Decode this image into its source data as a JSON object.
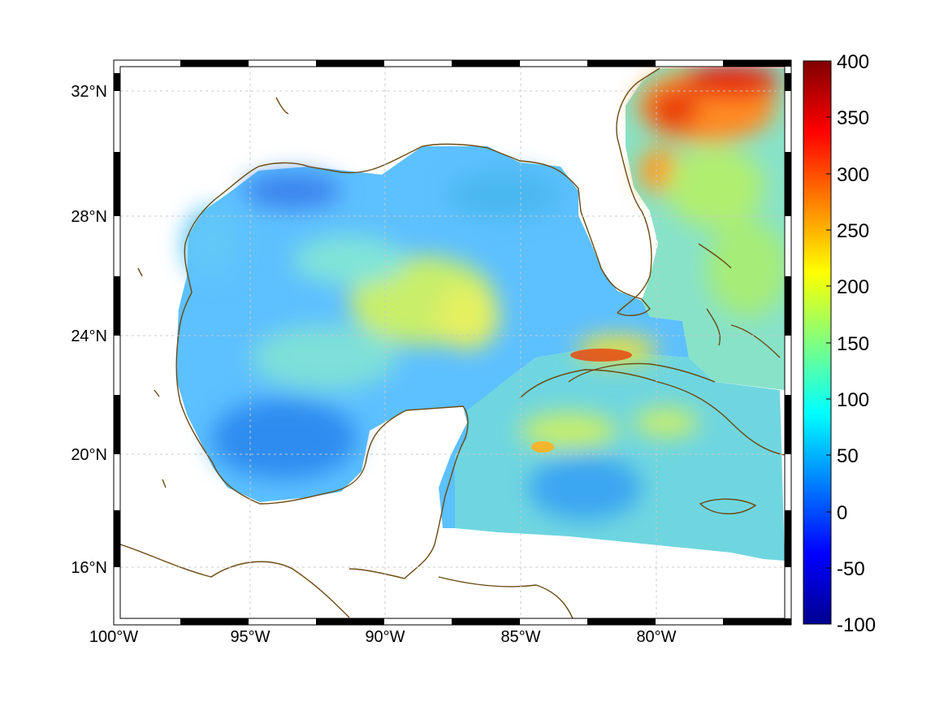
{
  "map": {
    "lat_ticks": [
      "32°N",
      "28°N",
      "24°N",
      "20°N",
      "16°N"
    ],
    "lon_ticks": [
      "100°W",
      "95°W",
      "90°W",
      "85°W",
      "80°W"
    ],
    "grid": true,
    "projection_frame": "black-white checkered border",
    "coastline_color": "#6b4a12",
    "land_color": "#ffffff",
    "region": "Gulf of Mexico, Caribbean and western North Atlantic"
  },
  "colorbar": {
    "colormap": "jet",
    "labels": [
      "400",
      "350",
      "300",
      "250",
      "200",
      "150",
      "100",
      "50",
      "0",
      "-50",
      "-100"
    ],
    "min": -100,
    "max": 400
  }
}
